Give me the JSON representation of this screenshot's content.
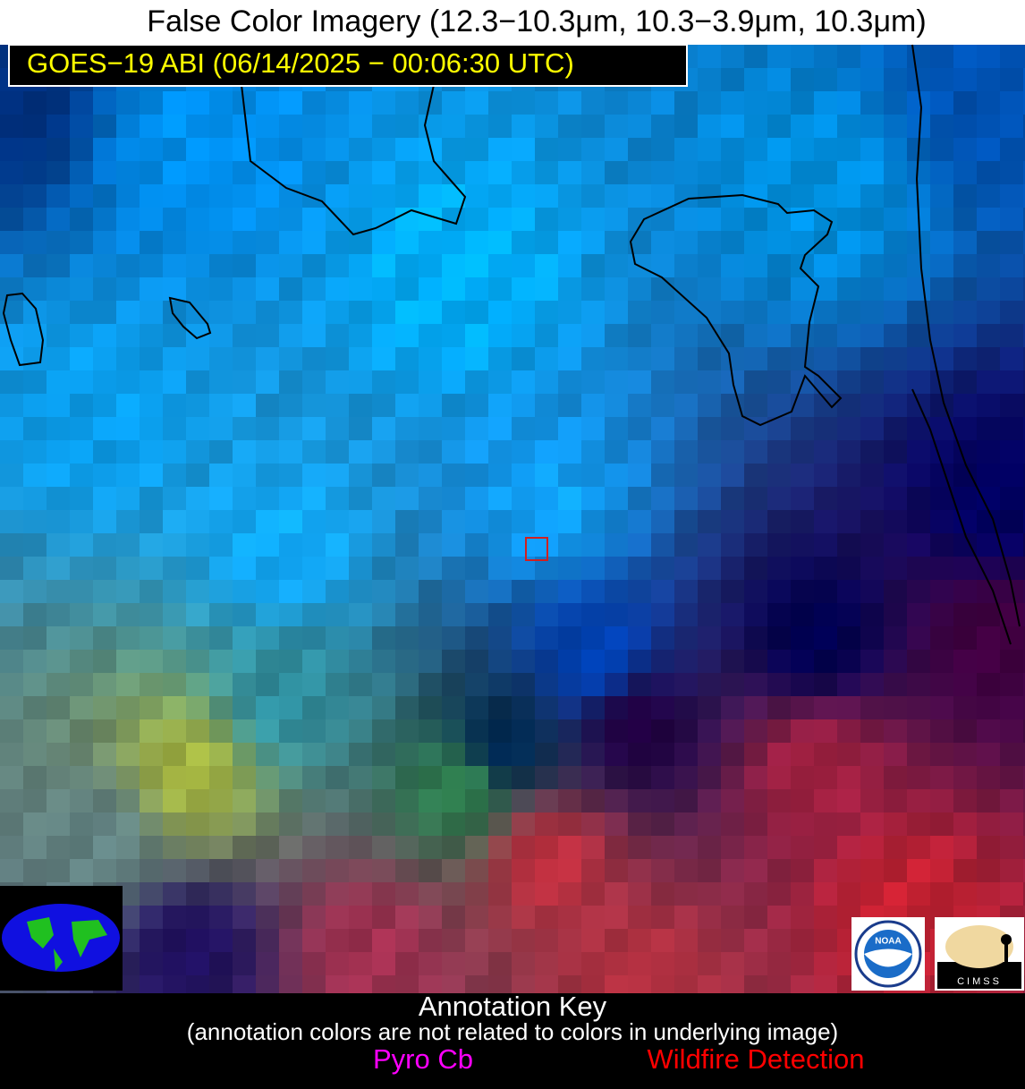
{
  "title": "False Color Imagery (12.3−10.3μm, 10.3−3.9μm, 10.3μm)",
  "subtitle": "GOES−19 ABI (06/14/2025 − 00:06:30 UTC)",
  "logos": {
    "noaa": "NOAA",
    "cimss": "CIMSS"
  },
  "annotation_key": {
    "title": "Annotation Key",
    "note": "(annotation colors are not related to colors in underlying image)",
    "items": [
      "Pyro Cb",
      "Wildfire Detection"
    ]
  }
}
